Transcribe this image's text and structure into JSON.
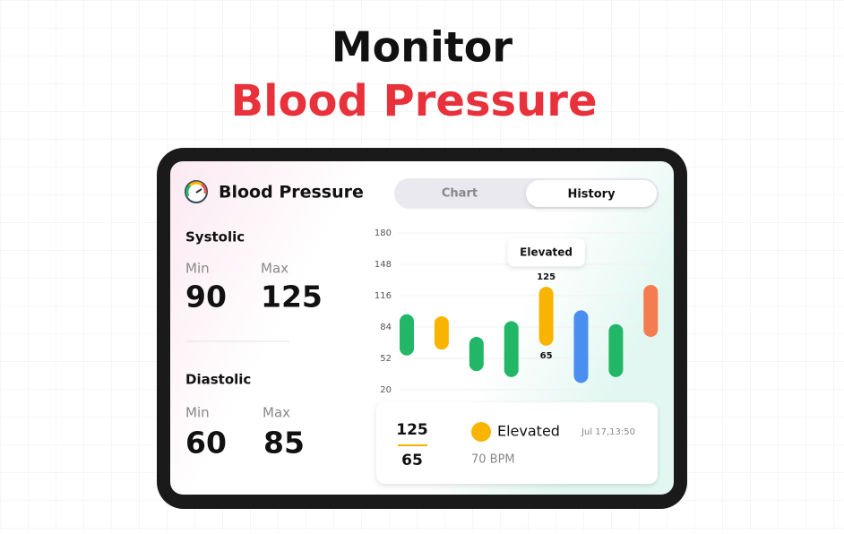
{
  "header": {
    "line1": "Monitor",
    "line2": "Blood Pressure"
  },
  "app": {
    "title": "Blood Pressure",
    "tabs": [
      "Chart",
      "History"
    ]
  },
  "summary": {
    "systolic": {
      "label": "Systolic",
      "min_label": "Min",
      "max_label": "Max",
      "min": "90",
      "max": "125"
    },
    "diastolic": {
      "label": "Diastolic",
      "min_label": "Min",
      "max_label": "Max",
      "min": "60",
      "max": "85"
    }
  },
  "chart_data": {
    "type": "range_bar",
    "ylim": [
      20,
      180
    ],
    "yticks": [
      20,
      52,
      84,
      116,
      148,
      180
    ],
    "grid": true,
    "bars": [
      {
        "low": 55,
        "high": 97,
        "color": "#22b766"
      },
      {
        "low": 61,
        "high": 95,
        "color": "#f8b400"
      },
      {
        "low": 39,
        "high": 74,
        "color": "#22b766"
      },
      {
        "low": 33,
        "high": 90,
        "color": "#22b766"
      },
      {
        "low": 65,
        "high": 125,
        "color": "#f8b400"
      },
      {
        "low": 27,
        "high": 101,
        "color": "#4a8ff0"
      },
      {
        "low": 33,
        "high": 87,
        "color": "#22b766"
      },
      {
        "low": 74,
        "high": 127,
        "color": "#f47c4f"
      }
    ],
    "labeled_bar": 4,
    "annotation": "Elevated"
  },
  "reading": {
    "systolic": "125",
    "diastolic": "65",
    "status": "Elevated",
    "time": "Jul 17,13:50",
    "pulse": "70 BPM"
  }
}
